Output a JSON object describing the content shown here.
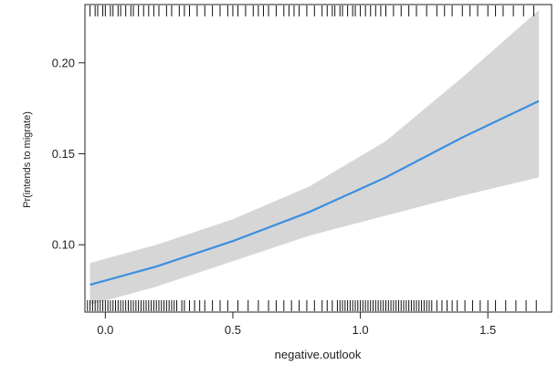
{
  "chart_data": {
    "type": "line",
    "title": "",
    "xlabel": "negative.outlook",
    "ylabel": "Pr(intends to migrate)",
    "xlim": [
      -0.08,
      1.75
    ],
    "ylim": [
      0.063,
      0.232
    ],
    "x_ticks": [
      0.0,
      0.5,
      1.0,
      1.5
    ],
    "x_tick_labels": [
      "0.0",
      "0.5",
      "1.0",
      "1.5"
    ],
    "y_ticks": [
      0.1,
      0.15,
      0.2
    ],
    "y_tick_labels": [
      "0.10",
      "0.15",
      "0.20"
    ],
    "grid": false,
    "legend": "none",
    "series": [
      {
        "x": [
          -0.06,
          0.2,
          0.5,
          0.8,
          1.1,
          1.4,
          1.7
        ],
        "values": [
          0.078,
          0.088,
          0.102,
          0.118,
          0.137,
          0.159,
          0.179
        ],
        "lower": [
          0.067,
          0.077,
          0.091,
          0.105,
          0.116,
          0.127,
          0.137
        ],
        "upper": [
          0.09,
          0.1,
          0.114,
          0.132,
          0.157,
          0.192,
          0.229
        ]
      }
    ],
    "rug_top": [
      -0.06,
      -0.04,
      -0.03,
      -0.01,
      0.0,
      0.02,
      0.03,
      0.05,
      0.06,
      0.08,
      0.1,
      0.11,
      0.13,
      0.15,
      0.17,
      0.19,
      0.21,
      0.24,
      0.26,
      0.29,
      0.31,
      0.33,
      0.36,
      0.39,
      0.42,
      0.45,
      0.48,
      0.5,
      0.52,
      0.55,
      0.58,
      0.6,
      0.62,
      0.64,
      0.67,
      0.7,
      0.72,
      0.74,
      0.76,
      0.79,
      0.82,
      0.85,
      0.87,
      0.89,
      0.9,
      0.92,
      0.93,
      0.95,
      0.97,
      0.98,
      1.0,
      1.02,
      1.04,
      1.06,
      1.08,
      1.1,
      1.13,
      1.16,
      1.19,
      1.22,
      1.26,
      1.3,
      1.33,
      1.36,
      1.4,
      1.43,
      1.46,
      1.5,
      1.53,
      1.56,
      1.6,
      1.64,
      1.68
    ],
    "rug_bottom": [
      -0.07,
      -0.06,
      -0.05,
      -0.04,
      -0.03,
      -0.02,
      -0.01,
      0.0,
      0.01,
      0.02,
      0.03,
      0.04,
      0.05,
      0.06,
      0.07,
      0.08,
      0.09,
      0.1,
      0.11,
      0.12,
      0.13,
      0.14,
      0.15,
      0.16,
      0.17,
      0.18,
      0.19,
      0.2,
      0.21,
      0.22,
      0.23,
      0.24,
      0.25,
      0.26,
      0.27,
      0.28,
      0.3,
      0.31,
      0.33,
      0.35,
      0.37,
      0.39,
      0.42,
      0.45,
      0.48,
      0.52,
      0.56,
      0.6,
      0.64,
      0.67,
      0.7,
      0.73,
      0.76,
      0.79,
      0.82,
      0.85,
      0.87,
      0.89,
      0.91,
      0.92,
      0.93,
      0.94,
      0.95,
      0.96,
      0.97,
      0.98,
      0.99,
      1.0,
      1.01,
      1.02,
      1.03,
      1.04,
      1.05,
      1.06,
      1.07,
      1.08,
      1.09,
      1.1,
      1.11,
      1.12,
      1.13,
      1.14,
      1.15,
      1.16,
      1.17,
      1.18,
      1.19,
      1.2,
      1.21,
      1.22,
      1.23,
      1.24,
      1.25,
      1.26,
      1.27,
      1.28,
      1.3,
      1.32,
      1.34,
      1.36,
      1.38,
      1.41,
      1.44,
      1.47,
      1.5,
      1.53,
      1.57,
      1.61,
      1.65,
      1.69
    ],
    "colors": {
      "line": "#3b8fe0",
      "band": "#d6d6d6",
      "rug": "#111111",
      "axis": "#222222"
    }
  }
}
